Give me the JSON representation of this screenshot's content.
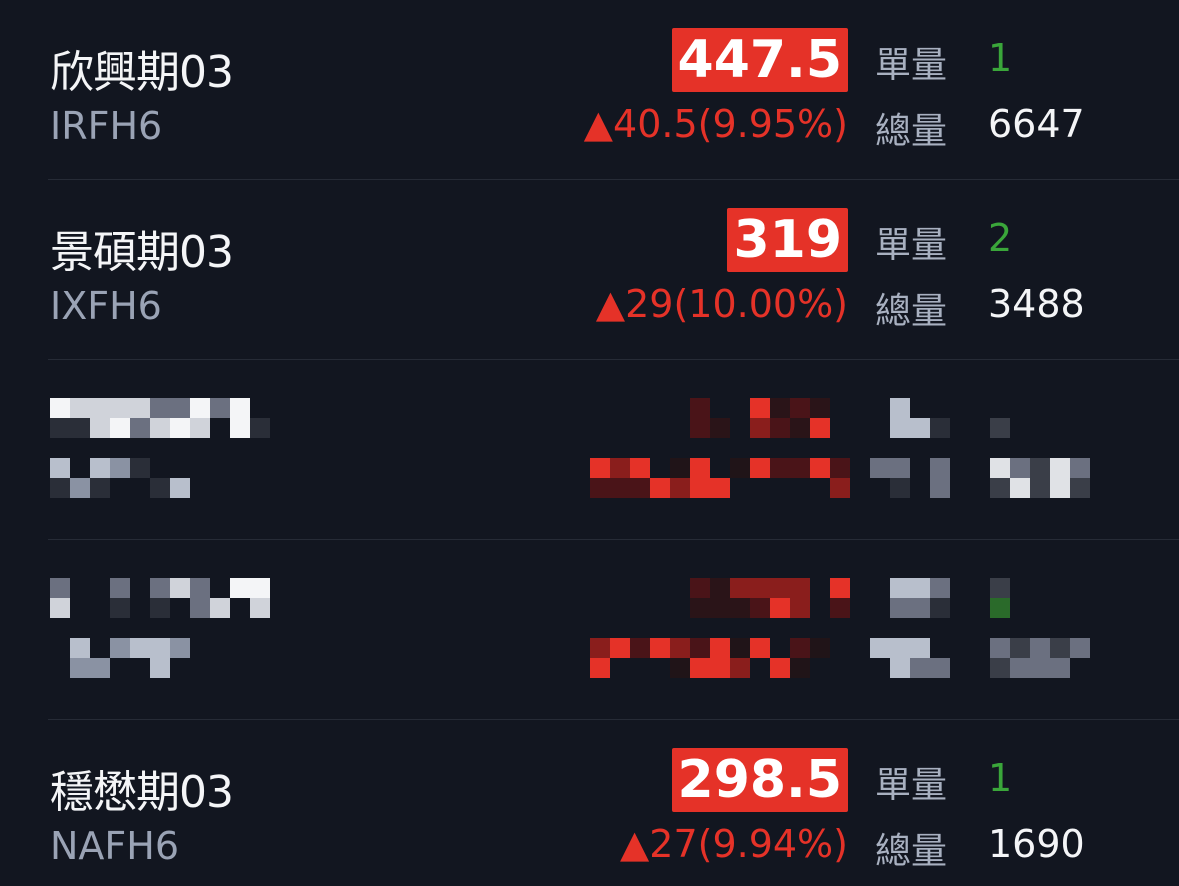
{
  "colors": {
    "background": "#121620",
    "up": "#e53228",
    "single_volume": "#3aa63a",
    "label": "#a8b0c0"
  },
  "quotes": [
    {
      "name": "欣興期03",
      "code": "IRFH6",
      "price": "447.5",
      "change_icon": "triangle-up",
      "change": "40.5",
      "change_pct": "(9.95%)",
      "single_label": "單量",
      "single": "1",
      "total_label": "總量",
      "total": "6647"
    },
    {
      "name": "景碩期03",
      "code": "IXFH6",
      "price": "319",
      "change_icon": "triangle-up",
      "change": "29",
      "change_pct": "(10.00%)",
      "single_label": "單量",
      "single": "2",
      "total_label": "總量",
      "total": "3488"
    },
    {
      "name": "穩懋期03",
      "code": "NAFH6",
      "price": "298.5",
      "change_icon": "triangle-up",
      "change": "27",
      "change_pct": "(9.94%)",
      "single_label": "單量",
      "single": "1",
      "total_label": "總量",
      "total": "1690"
    }
  ]
}
